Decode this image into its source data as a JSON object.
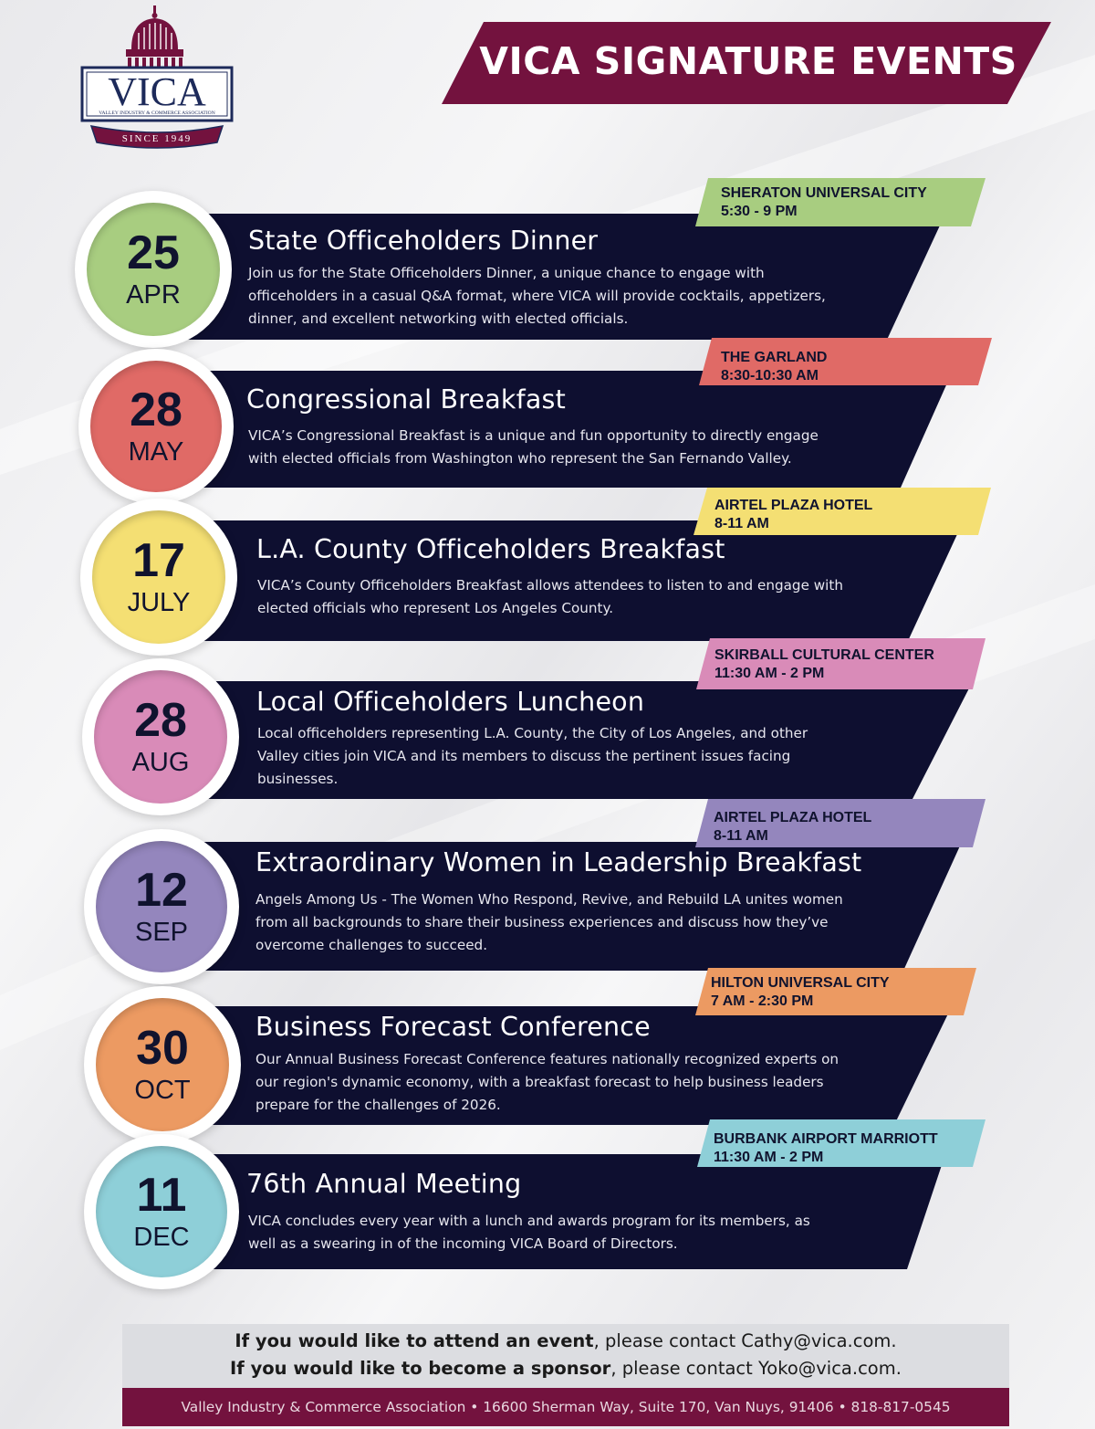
{
  "logo": {
    "name": "VICA",
    "subtitle": "VALLEY INDUSTRY & COMMERCE ASSOCIATION",
    "since": "SINCE 1949"
  },
  "header": {
    "title": "VICA SIGNATURE EVENTS"
  },
  "colors": {
    "maroon": "#73123e",
    "navy": "#0e0f30",
    "green": "#a8cd80",
    "red": "#e06a66",
    "yellow": "#f4df73",
    "pink": "#d98bb8",
    "purple": "#9486bd",
    "orange": "#ec9a62",
    "teal": "#8ecfd8"
  },
  "events": [
    {
      "day": "25",
      "month": "APR",
      "venue": "SHERATON UNIVERSAL CITY",
      "time": "5:30 - 9 PM",
      "title": "State Officeholders Dinner",
      "desc_lines": [
        "Join us for the State Officeholders Dinner, a unique chance to engage with",
        "officeholders in a casual Q&A format, where VICA will provide cocktails, appetizers,",
        "dinner, and excellent networking with elected officials."
      ]
    },
    {
      "day": "28",
      "month": "MAY",
      "venue": "THE GARLAND",
      "time": "8:30-10:30 AM",
      "title": "Congressional Breakfast",
      "desc_lines": [
        "VICA’s Congressional Breakfast is a unique and fun opportunity to directly engage",
        "with elected officials from Washington who represent the San Fernando Valley."
      ]
    },
    {
      "day": "17",
      "month": "JULY",
      "venue": "AIRTEL PLAZA HOTEL",
      "time": "8-11 AM",
      "title": "L.A. County Officeholders Breakfast",
      "desc_lines": [
        "VICA’s County Officeholders Breakfast allows attendees to listen to and engage with",
        "elected officials who represent Los Angeles County."
      ]
    },
    {
      "day": "28",
      "month": "AUG",
      "venue": "SKIRBALL CULTURAL CENTER",
      "time": "11:30 AM - 2 PM",
      "title": "Local Officeholders Luncheon",
      "desc_lines": [
        "Local officeholders representing L.A. County, the City of Los Angeles, and other",
        "Valley cities join VICA and its members to discuss the pertinent issues facing",
        "businesses."
      ]
    },
    {
      "day": "12",
      "month": "SEP",
      "venue": "AIRTEL PLAZA HOTEL",
      "time": "8-11 AM",
      "title": "Extraordinary Women in Leadership Breakfast",
      "desc_lines": [
        "Angels Among Us - The Women Who Respond, Revive, and Rebuild LA unites women",
        "from all backgrounds to share their business experiences and discuss how they’ve",
        "overcome challenges to succeed."
      ]
    },
    {
      "day": "30",
      "month": "OCT",
      "venue": "HILTON UNIVERSAL CITY",
      "time": "7 AM - 2:30 PM",
      "title": "Business Forecast Conference",
      "desc_lines": [
        "Our Annual Business Forecast Conference features nationally recognized experts on",
        "our region's dynamic economy, with a breakfast forecast to help business leaders",
        "prepare for the challenges of 2026."
      ]
    },
    {
      "day": "11",
      "month": "DEC",
      "venue": "BURBANK AIRPORT MARRIOTT",
      "time": "11:30 AM - 2 PM",
      "title": "76th Annual Meeting",
      "desc_lines": [
        "VICA concludes every year with a lunch and awards program for its members, as",
        "well as a swearing in of the incoming VICA Board of Directors."
      ]
    }
  ],
  "contact": {
    "attend_bold": "If you would like to attend an event",
    "attend_rest": ", please contact Cathy@vica.com.",
    "sponsor_bold": "If you would like to become a sponsor",
    "sponsor_rest": ", please contact Yoko@vica.com."
  },
  "footer": {
    "text": "Valley Industry & Commerce Association • 16600 Sherman Way, Suite 170, Van Nuys, 91406 • 818-817-0545"
  }
}
